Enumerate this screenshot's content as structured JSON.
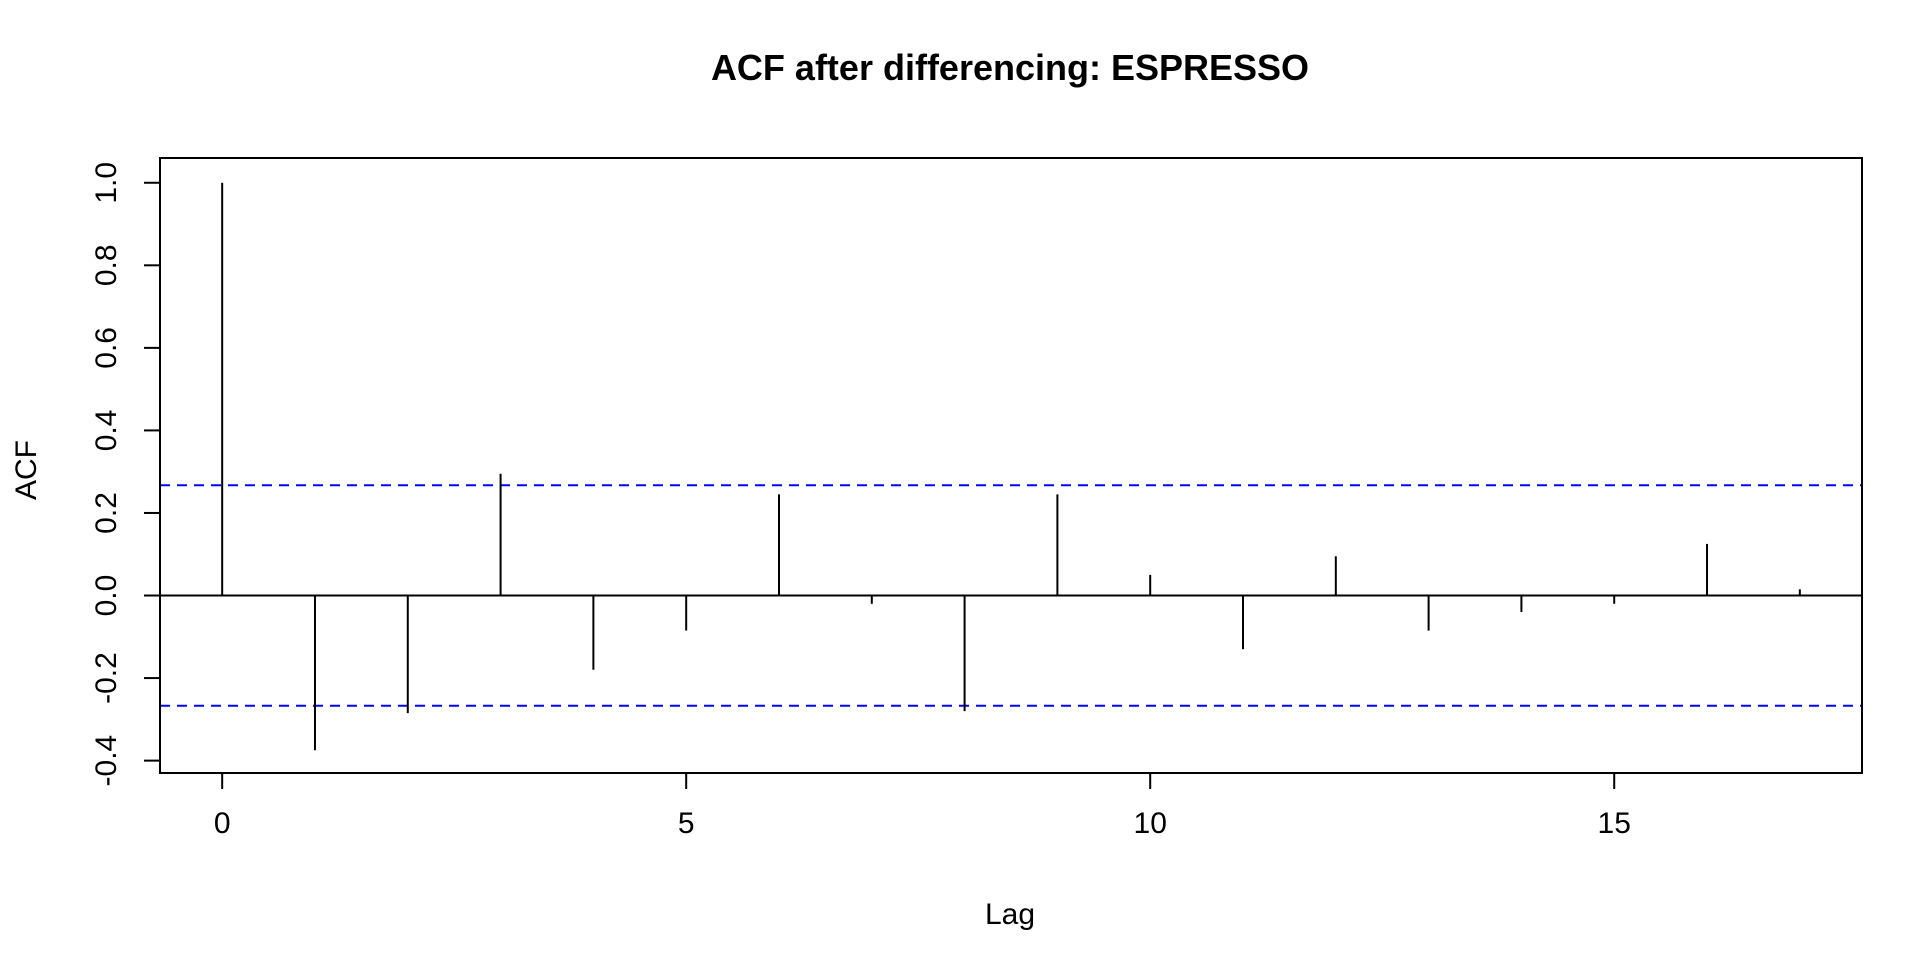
{
  "chart_data": {
    "type": "bar",
    "title": "ACF after differencing: ESPRESSO",
    "xlabel": "Lag",
    "ylabel": "ACF",
    "xlim": [
      -0.67,
      17.67
    ],
    "ylim": [
      -0.43,
      1.06
    ],
    "x_ticks": [
      0,
      5,
      10,
      15
    ],
    "y_ticks": [
      -0.4,
      -0.2,
      0.0,
      0.2,
      0.4,
      0.6,
      0.8,
      1.0
    ],
    "x_tick_labels": [
      "0",
      "5",
      "10",
      "15"
    ],
    "y_tick_labels": [
      "-0.4",
      "-0.2",
      "0.0",
      "0.2",
      "0.4",
      "0.6",
      "0.8",
      "1.0"
    ],
    "lags": [
      0,
      1,
      2,
      3,
      4,
      5,
      6,
      7,
      8,
      9,
      10,
      11,
      12,
      13,
      14,
      15,
      16,
      17
    ],
    "values": [
      1.0,
      -0.375,
      -0.285,
      0.295,
      -0.18,
      -0.085,
      0.245,
      -0.02,
      -0.28,
      0.245,
      0.05,
      -0.13,
      0.095,
      -0.085,
      -0.04,
      -0.02,
      0.125,
      0.015
    ],
    "confidence_bound": 0.267,
    "colors": {
      "bars": "#000000",
      "ci": "#0000ff",
      "zero_line": "#000000",
      "frame": "#000000"
    },
    "grid": false,
    "legend": "none"
  }
}
